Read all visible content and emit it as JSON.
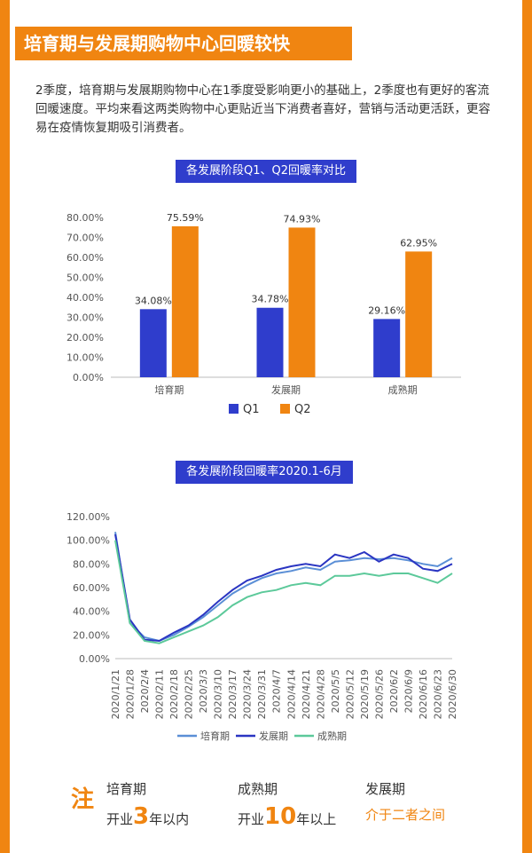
{
  "header": {
    "title": "培育期与发展期购物中心回暖较快"
  },
  "intro": "2季度，培育期与发展期购物中心在1季度受影响更小的基础上，2季度也有更好的客流回暖速度。平均来看这两类购物中心更贴近当下消费者喜好，营销与活动更活跃，更容易在疫情恢复期吸引消费者。",
  "colors": {
    "accent": "#f08511",
    "q1": "#2f3dcc",
    "q2": "#f08511",
    "peiyu": "#5b8fd6",
    "fazhan": "#2a35c2",
    "chengshu": "#5cc99a"
  },
  "chart_data": [
    {
      "type": "bar",
      "title": "各发展阶段Q1、Q2回暖率对比",
      "categories": [
        "培育期",
        "发展期",
        "成熟期"
      ],
      "series": [
        {
          "name": "Q1",
          "values": [
            34.08,
            34.78,
            29.16
          ],
          "labels": [
            "34.08%",
            "34.78%",
            "29.16%"
          ]
        },
        {
          "name": "Q2",
          "values": [
            75.59,
            74.93,
            62.95
          ],
          "labels": [
            "75.59%",
            "74.93%",
            "62.95%"
          ]
        }
      ],
      "yticks": [
        "0.00%",
        "10.00%",
        "20.00%",
        "30.00%",
        "40.00%",
        "50.00%",
        "60.00%",
        "70.00%",
        "80.00%"
      ],
      "ylim": [
        0,
        80
      ],
      "legend": "bottom",
      "grid": false
    },
    {
      "type": "line",
      "title": "各发展阶段回暖率2020.1-6月",
      "x": [
        "2020/1/21",
        "2020/1/28",
        "2020/2/4",
        "2020/2/11",
        "2020/2/18",
        "2020/2/25",
        "2020/3/3",
        "2020/3/10",
        "2020/3/17",
        "2020/3/24",
        "2020/3/31",
        "2020/4/7",
        "2020/4/14",
        "2020/4/21",
        "2020/4/28",
        "2020/5/5",
        "2020/5/12",
        "2020/5/19",
        "2020/5/26",
        "2020/6/2",
        "2020/6/9",
        "2020/6/16",
        "2020/6/23",
        "2020/6/30"
      ],
      "series": [
        {
          "name": "培育期",
          "values": [
            107,
            30,
            18,
            15,
            20,
            27,
            35,
            45,
            55,
            62,
            68,
            72,
            74,
            77,
            75,
            82,
            83,
            85,
            84,
            85,
            83,
            80,
            78,
            85
          ]
        },
        {
          "name": "发展期",
          "values": [
            105,
            33,
            16,
            15,
            22,
            28,
            37,
            48,
            58,
            66,
            70,
            75,
            78,
            80,
            78,
            88,
            85,
            90,
            82,
            88,
            85,
            76,
            74,
            80
          ]
        },
        {
          "name": "成熟期",
          "values": [
            100,
            30,
            15,
            13,
            18,
            23,
            28,
            35,
            45,
            52,
            56,
            58,
            62,
            64,
            62,
            70,
            70,
            72,
            70,
            72,
            72,
            68,
            64,
            72
          ]
        }
      ],
      "yticks": [
        "0.00%",
        "20.00%",
        "40.00%",
        "60.00%",
        "80.00%",
        "100.00%",
        "120.00%"
      ],
      "ylim": [
        0,
        120
      ],
      "legend": "bottom",
      "grid": false
    }
  ],
  "note": {
    "mark": "注",
    "items": [
      {
        "name": "培育期",
        "pre": "开业",
        "num": "3",
        "post": "年以内"
      },
      {
        "name": "成熟期",
        "pre": "开业",
        "num": "10",
        "post": "年以上"
      },
      {
        "name": "发展期",
        "text": "介于二者之间"
      }
    ]
  }
}
